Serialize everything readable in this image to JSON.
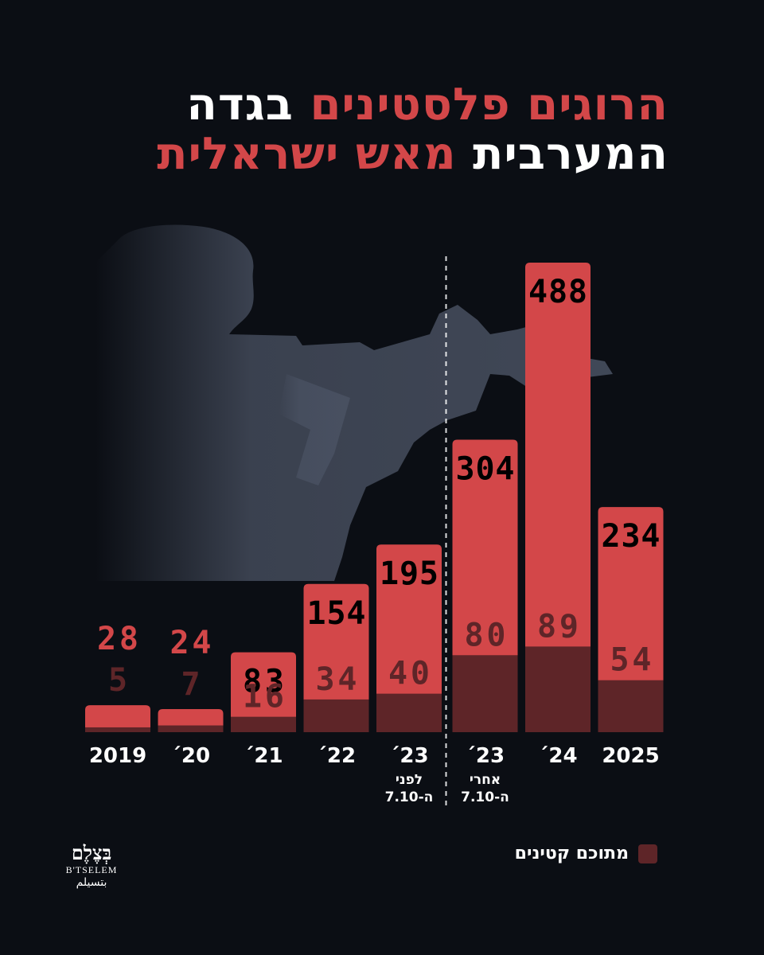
{
  "title": {
    "line1": {
      "red": "הרוגים פלסטינים",
      "white": "בגדה"
    },
    "line2": {
      "white": "המערבית",
      "red": "מאש ישראלית"
    }
  },
  "chart_data": {
    "type": "bar",
    "categories": [
      {
        "label": "2019",
        "note": ""
      },
      {
        "label": "´20",
        "note": ""
      },
      {
        "label": "´21",
        "note": ""
      },
      {
        "label": "´22",
        "note": ""
      },
      {
        "label": "´23",
        "note": [
          "לפני",
          "ה-7.10"
        ]
      },
      {
        "label": "´23",
        "note": [
          "אחרי",
          "ה-7.10"
        ]
      },
      {
        "label": "´24",
        "note": ""
      },
      {
        "label": "2025",
        "note": ""
      }
    ],
    "series": [
      {
        "name": "",
        "values": [
          28,
          24,
          83,
          154,
          195,
          304,
          488,
          234
        ]
      },
      {
        "name": "מתוכם קטינים",
        "values": [
          5,
          7,
          16,
          34,
          40,
          80,
          89,
          54
        ]
      }
    ],
    "ylim": [
      0,
      488
    ],
    "divider_after_index": 4,
    "colors": {
      "total": "#d34749",
      "minors": "#5e2528",
      "total_label": "#000000"
    }
  },
  "legend": {
    "label": "מתוכם קטינים",
    "color": "#5e2528"
  },
  "logo": {
    "hebrew": "בְּצֶלֶם",
    "english": "B'TSELEM",
    "arabic": "بتسيلم"
  }
}
